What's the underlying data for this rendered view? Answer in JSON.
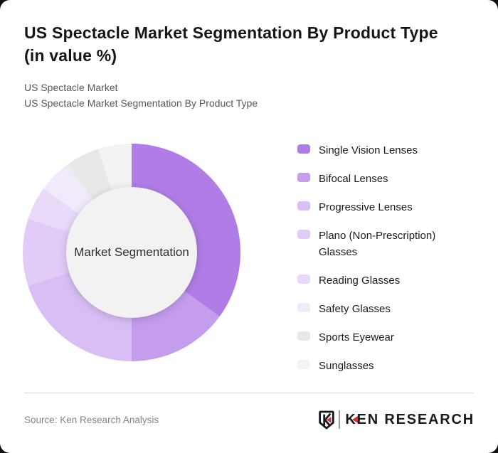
{
  "header": {
    "title_line1": "US Spectacle Market Segmentation By Product Type",
    "title_line2": "(in value %)",
    "subtitle_line1": "US Spectacle Market",
    "subtitle_line2": "US Spectacle Market Segmentation By Product Type"
  },
  "chart_data": {
    "type": "pie",
    "variant": "donut",
    "title": "US Spectacle Market Segmentation By Product Type (in value %)",
    "center_label": "Market Segmentation",
    "unit": "%",
    "categories": [
      "Single Vision Lenses",
      "Bifocal Lenses",
      "Progressive Lenses",
      "Plano (Non-Prescription) Glasses",
      "Reading Glasses",
      "Safety Glasses",
      "Sports Eyewear",
      "Sunglasses"
    ],
    "values": [
      35,
      15,
      20,
      10,
      5,
      5,
      5,
      5
    ],
    "colors": [
      "#b07de6",
      "#c49ded",
      "#d8bef4",
      "#e0ccf7",
      "#e8daf8",
      "#f1eafb",
      "#e9e8e9",
      "#f3f2f4"
    ],
    "start_angle_deg": 0,
    "direction": "clockwise",
    "legend_position": "right",
    "hole_color": "#f3f2f3"
  },
  "footer": {
    "source": "Source: Ken Research Analysis",
    "logo": {
      "brand_k": "K",
      "brand_rest": "EN RESEARCH",
      "emblem_letter": "K",
      "accent_color": "#c23b34",
      "ink_color": "#16181c"
    }
  }
}
